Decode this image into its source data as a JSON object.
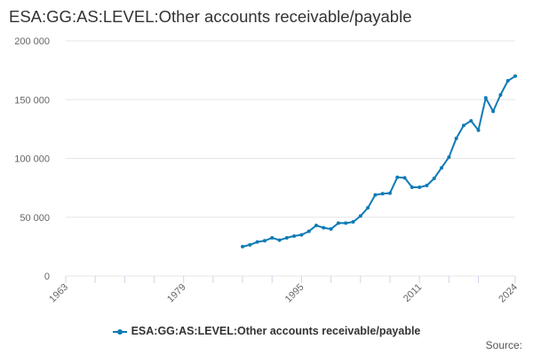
{
  "chart_data": {
    "type": "line",
    "title": "ESA:GG:AS:LEVEL:Other accounts receivable/payable",
    "xlabel": "",
    "ylabel": "",
    "xlim": [
      1963,
      2024
    ],
    "ylim": [
      0,
      200000
    ],
    "y_ticks": [
      0,
      50000,
      100000,
      150000,
      200000
    ],
    "y_tick_labels": [
      "0",
      "50 000",
      "100 000",
      "150 000",
      "200 000"
    ],
    "x_ticks": [
      1963,
      1967,
      1971,
      1975,
      1979,
      1983,
      1987,
      1991,
      1995,
      1999,
      2003,
      2007,
      2011,
      2015,
      2019,
      2024
    ],
    "x_tick_labels": [
      {
        "year": 1963,
        "label": "1963"
      },
      {
        "year": 1979,
        "label": "1979"
      },
      {
        "year": 1995,
        "label": "1995"
      },
      {
        "year": 2011,
        "label": "2011"
      },
      {
        "year": 2024,
        "label": "2024"
      }
    ],
    "grid": true,
    "legend_position": "bottom-center",
    "series": [
      {
        "name": "ESA:GG:AS:LEVEL:Other accounts receivable/payable",
        "color": "#0f7bb5",
        "x": [
          1987,
          1988,
          1989,
          1990,
          1991,
          1992,
          1993,
          1994,
          1995,
          1996,
          1997,
          1998,
          1999,
          2000,
          2001,
          2002,
          2003,
          2004,
          2005,
          2006,
          2007,
          2008,
          2009,
          2010,
          2011,
          2012,
          2013,
          2014,
          2015,
          2016,
          2017,
          2018,
          2019,
          2020,
          2021,
          2022,
          2023,
          2024
        ],
        "values": [
          25000,
          26500,
          29000,
          30000,
          32500,
          30500,
          32500,
          34000,
          35000,
          38000,
          43000,
          41000,
          40000,
          45000,
          45000,
          46000,
          51000,
          58000,
          69000,
          70000,
          70500,
          84000,
          83500,
          75500,
          75500,
          77000,
          83000,
          92000,
          101000,
          117000,
          128000,
          132000,
          124000,
          151500,
          140000,
          154000,
          166000,
          170000
        ]
      }
    ]
  },
  "footer": {
    "source_label": "Source:"
  }
}
